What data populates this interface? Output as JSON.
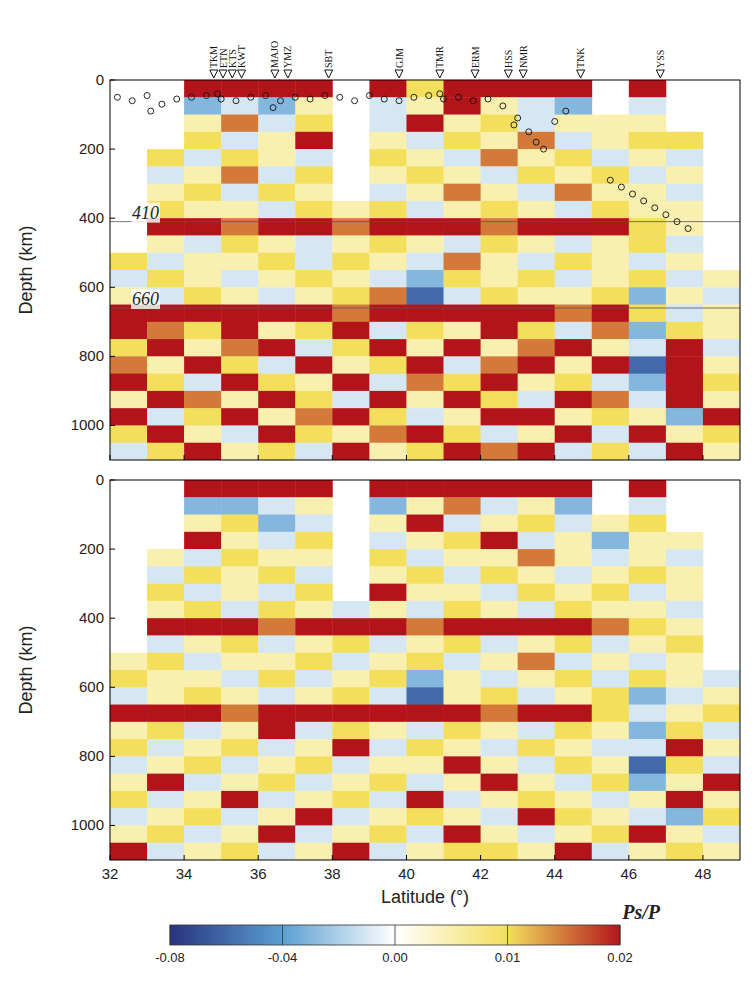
{
  "chart_data": {
    "type": "heatmap",
    "xlabel": "Latitude (°)",
    "ylabel": "Depth (km)",
    "xlim": [
      32,
      49
    ],
    "ylim": [
      0,
      1100
    ],
    "xticks": [
      32,
      34,
      36,
      38,
      40,
      42,
      44,
      46,
      48
    ],
    "yticks": [
      0,
      200,
      400,
      600,
      800,
      1000
    ],
    "lat_bins": [
      32,
      33,
      34,
      35,
      36,
      37,
      38,
      39,
      40,
      41,
      42,
      43,
      44,
      45,
      46,
      47,
      48,
      49
    ],
    "depth_bins": [
      0,
      50,
      100,
      150,
      200,
      250,
      300,
      350,
      400,
      450,
      500,
      550,
      600,
      650,
      700,
      750,
      800,
      850,
      900,
      950,
      1000,
      1050,
      1100
    ],
    "colorbar": {
      "label": "Ps/P",
      "range": [
        -0.08,
        0.02
      ],
      "ticks": [
        -0.08,
        -0.04,
        {
          "value": 0,
          "label": "0.00"
        },
        0.01,
        0.02
      ]
    },
    "panels": [
      {
        "discontinuities": [
          410,
          660
        ],
        "stations": [
          {
            "name": "TKM",
            "lat": 34.8
          },
          {
            "name": "ETN",
            "lat": 35.05
          },
          {
            "name": "KTS",
            "lat": 35.3
          },
          {
            "name": "KWT",
            "lat": 35.55
          },
          {
            "name": "MAJO",
            "lat": 36.45
          },
          {
            "name": "YMZ",
            "lat": 36.8
          },
          {
            "name": "SBT",
            "lat": 37.9
          },
          {
            "name": "GJM",
            "lat": 39.8
          },
          {
            "name": "TMR",
            "lat": 40.9
          },
          {
            "name": "ERM",
            "lat": 41.85
          },
          {
            "name": "HSS",
            "lat": 42.75
          },
          {
            "name": "NMR",
            "lat": 43.15
          },
          {
            "name": "TNK",
            "lat": 44.7
          },
          {
            "name": "YSS",
            "lat": 46.85
          }
        ],
        "earthquakes": {
          "x": [
            32.2,
            32.6,
            33.0,
            33.4,
            33.8,
            34.2,
            34.6,
            35.0,
            35.4,
            35.8,
            36.2,
            36.6,
            37.0,
            37.4,
            37.8,
            38.2,
            38.6,
            39.0,
            39.4,
            39.8,
            40.2,
            40.6,
            41.0,
            41.4,
            41.8,
            42.2,
            42.6,
            43.0,
            43.3,
            43.5,
            43.7,
            44.0,
            44.3,
            45.5,
            45.8,
            46.1,
            46.4,
            46.7,
            47.0,
            47.3,
            47.6,
            33.1,
            34.9,
            36.4,
            40.9,
            42.9
          ],
          "y": [
            50,
            60,
            45,
            70,
            55,
            50,
            45,
            55,
            60,
            50,
            45,
            60,
            50,
            55,
            45,
            50,
            60,
            45,
            55,
            60,
            50,
            45,
            55,
            50,
            60,
            55,
            75,
            110,
            150,
            180,
            200,
            120,
            90,
            290,
            310,
            330,
            350,
            370,
            390,
            410,
            430,
            90,
            40,
            80,
            40,
            130
          ]
        },
        "cells": [
          [
            null,
            null,
            0.02,
            0.02,
            0.02,
            0.02,
            null,
            0.02,
            0.01,
            0.02,
            0.02,
            0.02,
            0.02,
            null,
            0.02,
            null,
            null
          ],
          [
            null,
            null,
            -0.03,
            -0.01,
            -0.03,
            0.005,
            null,
            -0.01,
            0.005,
            0.02,
            0.005,
            -0.01,
            -0.03,
            null,
            -0.01,
            null,
            null
          ],
          [
            null,
            null,
            0.005,
            0.015,
            -0.01,
            0.01,
            null,
            -0.01,
            0.02,
            0.005,
            0.01,
            -0.01,
            0.005,
            0.005,
            0.005,
            null,
            null
          ],
          [
            null,
            null,
            0.01,
            -0.01,
            0.005,
            0.02,
            null,
            0.005,
            -0.01,
            0.01,
            0.005,
            0.015,
            -0.01,
            0.005,
            0.01,
            0.01,
            null
          ],
          [
            null,
            0.01,
            -0.01,
            0.01,
            0.005,
            -0.01,
            null,
            0.01,
            0.005,
            -0.01,
            0.015,
            0.005,
            0.01,
            -0.01,
            0.005,
            -0.01,
            null
          ],
          [
            null,
            -0.01,
            0.005,
            0.015,
            -0.01,
            0.01,
            null,
            0.005,
            0.01,
            0.005,
            -0.01,
            0.01,
            0.005,
            0.01,
            -0.01,
            0.005,
            null
          ],
          [
            null,
            0.005,
            0.01,
            -0.01,
            0.01,
            0.005,
            null,
            -0.01,
            0.005,
            0.015,
            0.005,
            -0.01,
            0.015,
            0.005,
            0.005,
            -0.01,
            null
          ],
          [
            null,
            0.01,
            0.005,
            0.005,
            -0.01,
            0.01,
            0.005,
            0.01,
            -0.01,
            0.005,
            0.01,
            0.005,
            -0.01,
            0.01,
            0.005,
            0.005,
            null
          ],
          [
            null,
            0.02,
            0.02,
            0.015,
            0.02,
            0.02,
            0.015,
            0.02,
            0.02,
            0.02,
            0.015,
            0.02,
            0.02,
            0.02,
            0.01,
            0.005,
            null
          ],
          [
            null,
            0.005,
            -0.01,
            0.01,
            0.005,
            -0.01,
            0.005,
            0.01,
            0.005,
            -0.01,
            0.01,
            0.005,
            -0.01,
            0.005,
            0.01,
            -0.01,
            null
          ],
          [
            0.01,
            -0.01,
            0.005,
            0.005,
            0.01,
            -0.01,
            0.01,
            0.005,
            -0.01,
            0.015,
            0.005,
            -0.01,
            0.01,
            0.005,
            -0.01,
            0.005,
            null
          ],
          [
            -0.01,
            0.01,
            0.005,
            -0.01,
            0.005,
            0.01,
            0.005,
            -0.01,
            -0.03,
            0.01,
            0.005,
            0.01,
            -0.01,
            0.005,
            0.01,
            -0.01,
            0.005
          ],
          [
            0.005,
            -0.01,
            0.01,
            0.005,
            -0.01,
            0.005,
            0.01,
            0.015,
            -0.06,
            -0.01,
            0.01,
            0.005,
            0.005,
            0.01,
            -0.03,
            0.005,
            -0.01
          ],
          [
            0.02,
            0.02,
            0.02,
            0.02,
            0.02,
            0.02,
            0.015,
            0.02,
            0.02,
            0.02,
            0.02,
            0.02,
            0.015,
            0.02,
            0.01,
            -0.01,
            0.005
          ],
          [
            0.02,
            0.015,
            0.01,
            0.02,
            0.005,
            0.01,
            0.02,
            -0.01,
            0.01,
            0.005,
            0.02,
            0.01,
            -0.01,
            0.015,
            -0.03,
            0.01,
            0.005
          ],
          [
            0.01,
            0.02,
            0.005,
            0.015,
            0.02,
            -0.01,
            0.01,
            0.02,
            0.005,
            0.02,
            0.005,
            0.015,
            0.02,
            0.005,
            -0.01,
            0.02,
            -0.01
          ],
          [
            0.015,
            0.005,
            0.02,
            0.01,
            -0.01,
            0.02,
            0.005,
            0.01,
            0.02,
            -0.01,
            0.015,
            0.02,
            0.005,
            0.02,
            -0.06,
            0.02,
            0.005
          ],
          [
            0.02,
            0.01,
            -0.01,
            0.02,
            0.01,
            0.005,
            0.02,
            -0.01,
            0.015,
            0.01,
            0.02,
            0.005,
            0.01,
            -0.01,
            -0.03,
            0.02,
            0.01
          ],
          [
            0.005,
            0.02,
            0.015,
            0.005,
            0.02,
            0.01,
            -0.01,
            0.02,
            0.005,
            0.02,
            0.01,
            -0.01,
            0.02,
            0.015,
            -0.01,
            0.02,
            0.005
          ],
          [
            0.02,
            -0.01,
            0.01,
            0.02,
            0.005,
            0.015,
            0.02,
            0.01,
            -0.01,
            0.005,
            0.02,
            0.02,
            0.005,
            0.01,
            0.005,
            -0.03,
            0.02
          ],
          [
            0.01,
            0.02,
            0.005,
            -0.01,
            0.02,
            0.01,
            0.005,
            0.015,
            0.02,
            0.01,
            -0.01,
            0.005,
            0.02,
            -0.01,
            0.02,
            0.005,
            0.01
          ],
          [
            -0.01,
            0.01,
            0.02,
            0.005,
            0.01,
            -0.01,
            0.02,
            0.005,
            0.01,
            0.02,
            0.015,
            0.02,
            -0.01,
            0.01,
            -0.01,
            0.02,
            0.005
          ]
        ]
      },
      {
        "cells": [
          [
            null,
            null,
            0.02,
            0.02,
            0.02,
            0.02,
            null,
            0.02,
            0.02,
            0.02,
            0.02,
            0.02,
            0.02,
            null,
            0.02,
            null,
            null
          ],
          [
            null,
            null,
            -0.03,
            -0.03,
            -0.01,
            0.005,
            null,
            -0.03,
            0.005,
            0.015,
            -0.01,
            0.005,
            -0.03,
            null,
            -0.01,
            null,
            null
          ],
          [
            null,
            null,
            0.005,
            0.01,
            -0.03,
            -0.01,
            null,
            0.005,
            0.02,
            -0.01,
            0.005,
            0.01,
            -0.01,
            0.005,
            0.01,
            null,
            null
          ],
          [
            null,
            null,
            0.02,
            0.005,
            -0.01,
            0.01,
            null,
            -0.01,
            0.005,
            0.01,
            0.02,
            -0.01,
            0.005,
            -0.03,
            0.005,
            0.005,
            null
          ],
          [
            null,
            0.005,
            -0.01,
            0.01,
            0.005,
            0.005,
            null,
            0.01,
            -0.01,
            0.005,
            0.005,
            0.015,
            0.005,
            -0.01,
            0.005,
            -0.01,
            null
          ],
          [
            null,
            -0.01,
            0.01,
            0.005,
            0.01,
            -0.01,
            null,
            0.005,
            0.01,
            -0.01,
            0.01,
            0.005,
            -0.01,
            0.005,
            0.01,
            0.005,
            null
          ],
          [
            null,
            0.01,
            -0.01,
            0.005,
            -0.01,
            0.01,
            null,
            0.02,
            0.005,
            0.005,
            -0.01,
            0.01,
            0.005,
            0.01,
            -0.01,
            0.005,
            null
          ],
          [
            null,
            0.005,
            0.01,
            -0.01,
            0.01,
            0.005,
            -0.01,
            0.005,
            -0.01,
            0.01,
            0.005,
            -0.01,
            0.01,
            0.005,
            0.005,
            -0.01,
            null
          ],
          [
            null,
            0.02,
            0.02,
            0.02,
            0.015,
            0.02,
            0.02,
            0.02,
            0.015,
            0.02,
            0.02,
            0.02,
            0.02,
            0.015,
            0.01,
            0.005,
            null
          ],
          [
            null,
            -0.01,
            0.005,
            0.01,
            -0.01,
            0.005,
            0.01,
            -0.01,
            0.005,
            0.01,
            -0.01,
            0.005,
            0.01,
            -0.01,
            0.005,
            0.01,
            null
          ],
          [
            0.005,
            0.01,
            -0.01,
            0.005,
            0.005,
            0.01,
            -0.01,
            0.005,
            0.01,
            -0.01,
            0.005,
            0.015,
            -0.01,
            0.005,
            -0.01,
            0.005,
            null
          ],
          [
            0.01,
            0.005,
            0.005,
            -0.01,
            0.01,
            -0.01,
            0.005,
            0.01,
            -0.03,
            0.005,
            -0.01,
            0.005,
            0.01,
            -0.01,
            0.01,
            0.005,
            -0.01
          ],
          [
            -0.01,
            0.005,
            0.01,
            0.005,
            -0.01,
            0.005,
            0.01,
            -0.01,
            -0.06,
            0.005,
            0.01,
            -0.01,
            0.005,
            0.01,
            -0.03,
            -0.01,
            0.005
          ],
          [
            0.02,
            0.02,
            0.02,
            0.015,
            0.02,
            0.02,
            0.02,
            0.02,
            0.02,
            0.02,
            0.015,
            0.02,
            0.02,
            0.01,
            -0.01,
            0.005,
            0.01
          ],
          [
            0.005,
            0.01,
            -0.01,
            0.005,
            0.02,
            -0.01,
            0.01,
            0.005,
            -0.01,
            0.01,
            0.005,
            -0.01,
            0.01,
            0.005,
            -0.03,
            0.01,
            -0.01
          ],
          [
            0.01,
            -0.01,
            0.005,
            0.01,
            -0.01,
            0.005,
            0.02,
            -0.01,
            0.01,
            0.005,
            -0.01,
            0.01,
            0.005,
            -0.01,
            -0.01,
            0.02,
            0.005
          ],
          [
            -0.01,
            0.005,
            0.01,
            -0.01,
            0.005,
            0.01,
            -0.01,
            0.005,
            0.005,
            0.02,
            0.005,
            -0.01,
            0.01,
            0.005,
            -0.06,
            0.01,
            -0.01
          ],
          [
            0.005,
            0.02,
            -0.01,
            0.005,
            0.01,
            -0.01,
            0.005,
            0.01,
            -0.01,
            0.005,
            0.02,
            0.005,
            -0.01,
            0.01,
            -0.03,
            0.005,
            0.02
          ],
          [
            0.01,
            -0.01,
            0.005,
            0.02,
            -0.01,
            0.005,
            0.01,
            -0.01,
            0.02,
            -0.01,
            0.005,
            0.01,
            0.005,
            -0.01,
            0.005,
            0.02,
            0.005
          ],
          [
            -0.01,
            0.005,
            0.01,
            -0.01,
            0.005,
            0.02,
            -0.01,
            0.005,
            0.01,
            0.005,
            -0.01,
            0.02,
            0.01,
            0.005,
            -0.01,
            -0.03,
            0.01
          ],
          [
            0.005,
            0.01,
            -0.01,
            0.005,
            0.02,
            -0.01,
            0.005,
            0.01,
            -0.01,
            0.02,
            0.005,
            -0.01,
            0.005,
            0.01,
            0.02,
            0.005,
            -0.01
          ],
          [
            0.02,
            -0.01,
            0.005,
            0.01,
            -0.01,
            0.005,
            0.02,
            -0.01,
            0.005,
            0.01,
            0.01,
            0.005,
            0.02,
            -0.01,
            0.005,
            0.01,
            0.005
          ]
        ]
      }
    ]
  }
}
